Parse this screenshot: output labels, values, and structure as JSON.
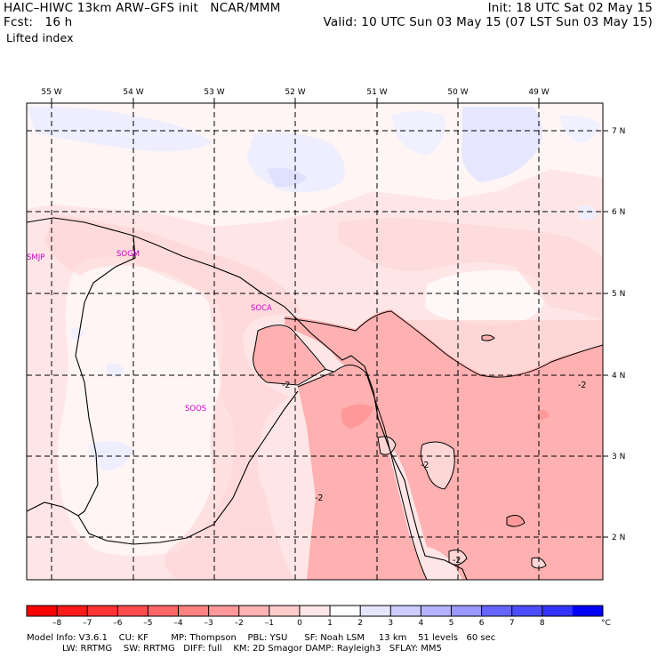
{
  "header": {
    "title_left": "HAIC–HIWC 13km ARW–GFS init   NCAR/MMM",
    "forecast": "Fcst:   16 h",
    "field": "Lifted index",
    "init": "Init: 18 UTC Sat 02 May 15",
    "valid": "Valid: 10 UTC Sun 03 May 15 (07 LST Sun 03 May 15)"
  },
  "map": {
    "longitude_labels": [
      "55 W",
      "54 W",
      "53 W",
      "52 W",
      "51 W",
      "50 W",
      "49 W"
    ],
    "latitude_labels": [
      "7 N",
      "6 N",
      "5 N",
      "4 N",
      "3 N",
      "2 N"
    ],
    "stations": [
      "SMJP",
      "SOGM",
      "SOCA",
      "SOOS"
    ],
    "contour_labels": [
      "-2",
      "-2",
      "-2",
      "-2",
      "-2"
    ]
  },
  "colorbar": {
    "ticks": [
      "–8",
      "–7",
      "–6",
      "–5",
      "–4",
      "–3",
      "–2",
      "–1",
      "0",
      "1",
      "2",
      "3",
      "4",
      "5",
      "6",
      "7",
      "8"
    ],
    "unit": "°C",
    "colors": [
      "#ff0000",
      "#ff1a1a",
      "#ff3333",
      "#ff4d4d",
      "#ff6666",
      "#ff8080",
      "#ff9999",
      "#ffb3b3",
      "#ffcccc",
      "#ffe6e6",
      "#ffffff",
      "#e6e6ff",
      "#ccccff",
      "#b3b3ff",
      "#9999ff",
      "#6666ff",
      "#4d4dff",
      "#3333ff",
      "#0000ff"
    ]
  },
  "footer": {
    "line1": "Model Info: V3.6.1    CU: KF        MP: Thompson    PBL: YSU      SF: Noah LSM     13 km    51 levels   60 sec",
    "line2": "LW: RRTMG    SW: RRTMG   DIFF: full    KM: 2D Smagor DAMP: Rayleigh3   SFLAY: MM5"
  }
}
